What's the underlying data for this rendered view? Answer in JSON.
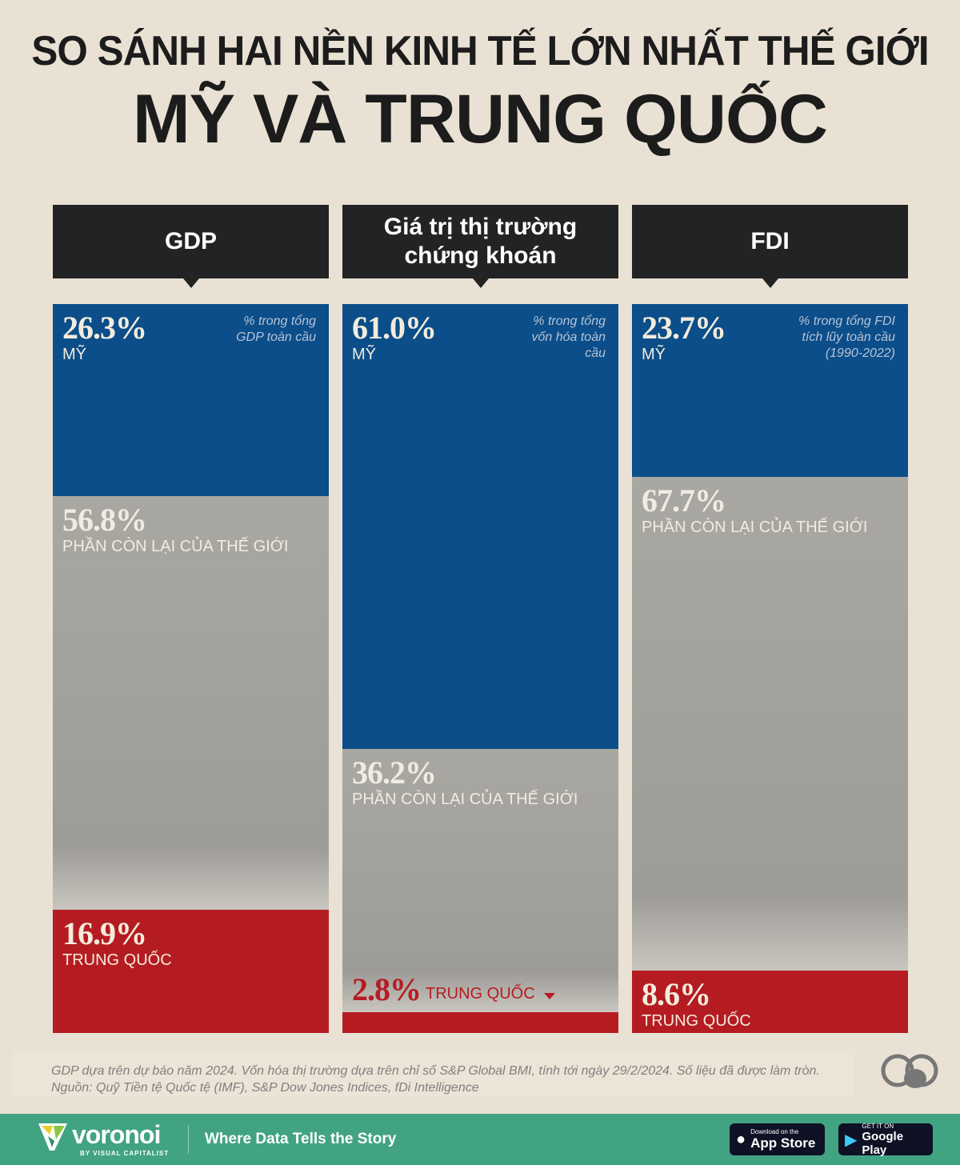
{
  "title_line1": "SO SÁNH HAI NỀN KINH TẾ LỚN NHẤT THẾ GIỚI",
  "title_line2": "MỸ VÀ TRUNG QUỐC",
  "colors": {
    "us": "#0b4e8a",
    "rest": "#a8a6a1",
    "china": "#b51c22",
    "header": "#222324"
  },
  "chart_data": [
    {
      "type": "bar",
      "title": "GDP",
      "note": "% trong tổng GDP toàn cầu",
      "series": [
        {
          "name": "MỸ",
          "value": 26.3,
          "pct": "26.3%"
        },
        {
          "name": "PHẦN CÒN LẠI CỦA THẾ GIỚI",
          "value": 56.8,
          "pct": "56.8%"
        },
        {
          "name": "TRUNG QUỐC",
          "value": 16.9,
          "pct": "16.9%"
        }
      ]
    },
    {
      "type": "bar",
      "title": "Giá trị thị trường chứng khoán",
      "note": "% trong tổng vốn hóa toàn cầu",
      "series": [
        {
          "name": "MỸ",
          "value": 61.0,
          "pct": "61.0%"
        },
        {
          "name": "PHẦN CÒN LẠI CỦA THẾ GIỚI",
          "value": 36.2,
          "pct": "36.2%"
        },
        {
          "name": "TRUNG QUỐC",
          "value": 2.8,
          "pct": "2.8%"
        }
      ]
    },
    {
      "type": "bar",
      "title": "FDI",
      "note": "% trong tổng FDI tích lũy toàn cầu (1990-2022)",
      "series": [
        {
          "name": "MỸ",
          "value": 23.7,
          "pct": "23.7%"
        },
        {
          "name": "PHẦN CÒN LẠI CỦA THẾ GIỚI",
          "value": 67.7,
          "pct": "67.7%"
        },
        {
          "name": "TRUNG QUỐC",
          "value": 8.6,
          "pct": "8.6%"
        }
      ]
    }
  ],
  "footer": {
    "note": "GDP dựa trên dự báo năm 2024. Vốn hóa thị trường dựa trên chỉ số S&P Global BMI, tính tới ngày 29/2/2024. Số liệu đã được làm tròn.",
    "source": "Nguồn: Quỹ Tiền tệ Quốc tệ (IMF), S&P Dow Jones Indices, fDi Intelligence"
  },
  "brand": {
    "name": "voronoi",
    "sub": "BY VISUAL CAPITALIST",
    "tagline": "Where Data Tells the Story",
    "appstore_small": "Download on the",
    "appstore": "App Store",
    "gplay_small": "GET IT ON",
    "gplay": "Google Play"
  }
}
